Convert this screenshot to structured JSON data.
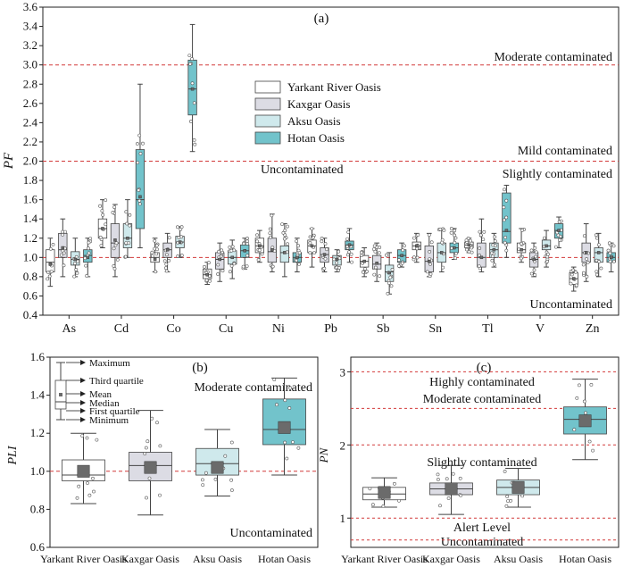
{
  "palette": {
    "yarkant": "#ffffff",
    "kaxgar": "#dcdce4",
    "aksu": "#cfe9ec",
    "hotan": "#72c3cb",
    "ref": "#d23a3a"
  },
  "chart_data": [
    {
      "type": "box",
      "panel": "(a)",
      "ylabel": "PF",
      "ylim": [
        0.4,
        3.6
      ],
      "yticks": [
        "0.4",
        "0.6",
        "0.8",
        "1.0",
        "1.2",
        "1.4",
        "1.6",
        "1.8",
        "2.0",
        "2.2",
        "2.4",
        "2.6",
        "2.8",
        "3.0",
        "3.2",
        "3.4",
        "3.6"
      ],
      "categories": [
        "As",
        "Cd",
        "Co",
        "Cu",
        "Ni",
        "Pb",
        "Sb",
        "Sn",
        "Tl",
        "V",
        "Zn"
      ],
      "legend": [
        "Yarkant River Oasis",
        "Kaxgar Oasis",
        "Aksu Oasis",
        "Hotan Oasis"
      ],
      "reference_lines": [
        {
          "value": 1.0,
          "text_below": "Uncontaminated"
        },
        {
          "value": 2.0,
          "text_below": "Uncontaminated",
          "text_above": "Mild contaminated"
        },
        {
          "value": 3.0,
          "text_above": "Moderate contaminated"
        }
      ],
      "labels": {
        "moderate": "Moderate contaminated",
        "mild": "Mild contaminated",
        "slightly": "Slightly contaminated",
        "uncont_mid": "Uncontaminated",
        "uncont_bottom": "Uncontaminated"
      },
      "series": [
        {
          "name": "Yarkant River Oasis",
          "stats": [
            [
              0.7,
              0.85,
              0.95,
              1.08,
              1.2,
              0.93
            ],
            [
              1.1,
              1.2,
              1.3,
              1.4,
              1.6,
              1.3
            ],
            [
              0.85,
              0.95,
              1.0,
              1.05,
              1.2,
              0.98
            ],
            [
              0.72,
              0.78,
              0.82,
              0.88,
              0.95,
              0.82
            ],
            [
              0.95,
              1.05,
              1.12,
              1.2,
              1.28,
              1.12
            ],
            [
              0.9,
              1.05,
              1.12,
              1.18,
              1.3,
              1.12
            ],
            [
              0.8,
              0.9,
              0.96,
              1.02,
              1.1,
              0.96
            ],
            [
              0.95,
              1.08,
              1.12,
              1.16,
              1.25,
              1.12
            ],
            [
              1.05,
              1.1,
              1.13,
              1.16,
              1.2,
              1.13
            ],
            [
              0.95,
              1.05,
              1.08,
              1.15,
              1.3,
              1.08
            ],
            [
              0.65,
              0.72,
              0.78,
              0.84,
              0.9,
              0.78
            ]
          ]
        },
        {
          "name": "Kaxgar Oasis",
          "stats": [
            [
              0.8,
              1.0,
              1.08,
              1.25,
              1.4,
              1.1
            ],
            [
              0.8,
              1.0,
              1.15,
              1.35,
              1.55,
              1.18
            ],
            [
              0.85,
              1.0,
              1.08,
              1.15,
              1.25,
              1.08
            ],
            [
              0.75,
              0.88,
              0.98,
              1.05,
              1.15,
              0.98
            ],
            [
              0.85,
              0.95,
              1.06,
              1.2,
              1.45,
              1.08
            ],
            [
              0.85,
              0.95,
              1.03,
              1.1,
              1.2,
              1.03
            ],
            [
              0.75,
              0.88,
              0.93,
              1.02,
              1.15,
              0.94
            ],
            [
              0.8,
              0.85,
              0.96,
              1.12,
              1.25,
              0.96
            ],
            [
              0.85,
              0.9,
              1.0,
              1.15,
              1.4,
              1.0
            ],
            [
              0.8,
              0.9,
              0.98,
              1.05,
              1.15,
              0.98
            ],
            [
              0.75,
              0.95,
              1.05,
              1.15,
              1.35,
              1.05
            ]
          ]
        },
        {
          "name": "Aksu Oasis",
          "stats": [
            [
              0.8,
              0.92,
              0.98,
              1.06,
              1.2,
              0.98
            ],
            [
              1.0,
              1.1,
              1.2,
              1.35,
              1.6,
              1.2
            ],
            [
              1.0,
              1.1,
              1.16,
              1.22,
              1.32,
              1.16
            ],
            [
              0.78,
              0.93,
              1.0,
              1.07,
              1.18,
              1.0
            ],
            [
              0.8,
              0.95,
              1.05,
              1.12,
              1.35,
              1.05
            ],
            [
              0.85,
              0.92,
              0.98,
              1.02,
              1.08,
              0.98
            ],
            [
              0.62,
              0.75,
              0.85,
              0.92,
              1.05,
              0.84
            ],
            [
              0.85,
              0.95,
              1.05,
              1.15,
              1.3,
              1.05
            ],
            [
              0.9,
              1.0,
              1.08,
              1.15,
              1.25,
              1.08
            ],
            [
              0.9,
              1.08,
              1.12,
              1.18,
              1.28,
              1.12
            ],
            [
              0.8,
              0.95,
              1.05,
              1.1,
              1.25,
              1.05
            ]
          ]
        },
        {
          "name": "Hotan Oasis",
          "stats": [
            [
              0.8,
              0.95,
              1.02,
              1.08,
              1.2,
              1.0
            ],
            [
              1.1,
              1.3,
              1.6,
              2.12,
              2.8,
              1.63
            ],
            [
              2.1,
              2.48,
              2.75,
              3.05,
              3.42,
              2.75
            ],
            [
              0.88,
              1.0,
              1.07,
              1.13,
              1.2,
              1.07
            ],
            [
              0.85,
              0.95,
              1.0,
              1.05,
              1.2,
              1.0
            ],
            [
              0.95,
              1.08,
              1.13,
              1.17,
              1.3,
              1.13
            ],
            [
              0.9,
              0.95,
              1.02,
              1.08,
              1.15,
              1.02
            ],
            [
              0.98,
              1.05,
              1.1,
              1.15,
              1.3,
              1.1
            ],
            [
              1.0,
              1.15,
              1.27,
              1.67,
              1.75,
              1.28
            ],
            [
              1.1,
              1.2,
              1.28,
              1.35,
              1.42,
              1.28
            ],
            [
              0.85,
              0.95,
              1.0,
              1.05,
              1.15,
              1.0
            ]
          ]
        }
      ]
    },
    {
      "type": "box",
      "panel": "(b)",
      "ylabel": "PLI",
      "ylim": [
        0.6,
        1.6
      ],
      "yticks": [
        "0.6",
        "0.8",
        "1.0",
        "1.2",
        "1.4",
        "1.6"
      ],
      "categories": [
        "Yarkant River Oasis",
        "Kaxgar Oasis",
        "Aksu Oasis",
        "Hotan Oasis"
      ],
      "reference_lines": [
        {
          "value": 1.0
        }
      ],
      "labels": {
        "upper": "Moderate contaminated",
        "lower": "Uncontaminated"
      },
      "legend_key": [
        "Maximum",
        "Third quartile",
        "Mean",
        "Median",
        "First quartile",
        "Minimum"
      ],
      "stats": [
        [
          0.83,
          0.95,
          0.98,
          1.06,
          1.2,
          1.0
        ],
        [
          0.77,
          0.95,
          1.03,
          1.1,
          1.32,
          1.02
        ],
        [
          0.87,
          0.98,
          1.04,
          1.12,
          1.22,
          1.02
        ],
        [
          0.98,
          1.14,
          1.22,
          1.38,
          1.49,
          1.23
        ]
      ]
    },
    {
      "type": "box",
      "panel": "(c)",
      "ylabel": "PN",
      "ylim": [
        0.6,
        3.2
      ],
      "yticks": [
        "1",
        "2",
        "3"
      ],
      "categories": [
        "Yarkant River Oasis",
        "Kaxgar Oasis",
        "Aksu Oasis",
        "Hotan Oasis"
      ],
      "reference_lines": [
        {
          "value": 0.7
        },
        {
          "value": 1.0
        },
        {
          "value": 2.0
        },
        {
          "value": 2.5
        },
        {
          "value": 3.0
        }
      ],
      "labels": {
        "highly": "Highly contaminated",
        "moderate": "Moderate contaminated",
        "slightly": "Slightly contaminated",
        "alert": "Alert Level",
        "uncont": "Uncontaminated"
      },
      "stats": [
        [
          1.15,
          1.25,
          1.33,
          1.42,
          1.55,
          1.35
        ],
        [
          1.05,
          1.32,
          1.4,
          1.48,
          1.72,
          1.4
        ],
        [
          1.15,
          1.32,
          1.42,
          1.52,
          1.68,
          1.42
        ],
        [
          1.8,
          2.15,
          2.35,
          2.52,
          2.9,
          2.33
        ]
      ]
    }
  ]
}
